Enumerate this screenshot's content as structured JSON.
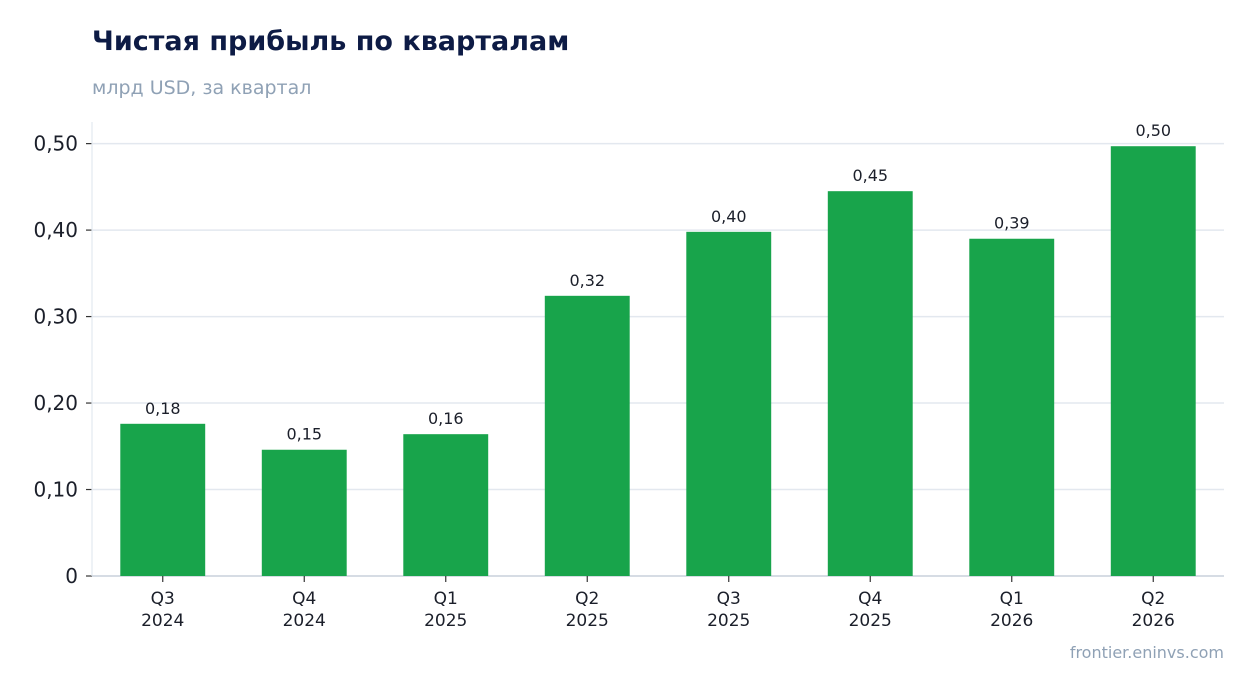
{
  "title": "Чистая прибыль по кварталам",
  "subtitle": "млрд USD, за квартал",
  "source": "frontier.eninvs.com",
  "colors": {
    "bar": "#18a44b",
    "grid": "#e3e8ef",
    "axis": "#c9d1dc",
    "title": "#0d1b45",
    "muted": "#8fa1b5"
  },
  "chart_data": {
    "type": "bar",
    "title": "Чистая прибыль по кварталам",
    "subtitle": "млрд USD, за квартал",
    "categories": [
      [
        "Q3",
        "2024"
      ],
      [
        "Q4",
        "2024"
      ],
      [
        "Q1",
        "2025"
      ],
      [
        "Q2",
        "2025"
      ],
      [
        "Q3",
        "2025"
      ],
      [
        "Q4",
        "2025"
      ],
      [
        "Q1",
        "2026"
      ],
      [
        "Q2",
        "2026"
      ]
    ],
    "values": [
      0.176,
      0.146,
      0.164,
      0.324,
      0.398,
      0.445,
      0.39,
      0.497
    ],
    "data_labels": [
      "0,18",
      "0,15",
      "0,16",
      "0,32",
      "0,40",
      "0,45",
      "0,39",
      "0,50"
    ],
    "ylim": [
      0,
      0.525
    ],
    "yticks": [
      0,
      0.1,
      0.2,
      0.3,
      0.4,
      0.5
    ],
    "ytick_labels": [
      "0",
      "0,10",
      "0,20",
      "0,30",
      "0,40",
      "0,50"
    ],
    "grid": true,
    "legend": "none"
  }
}
